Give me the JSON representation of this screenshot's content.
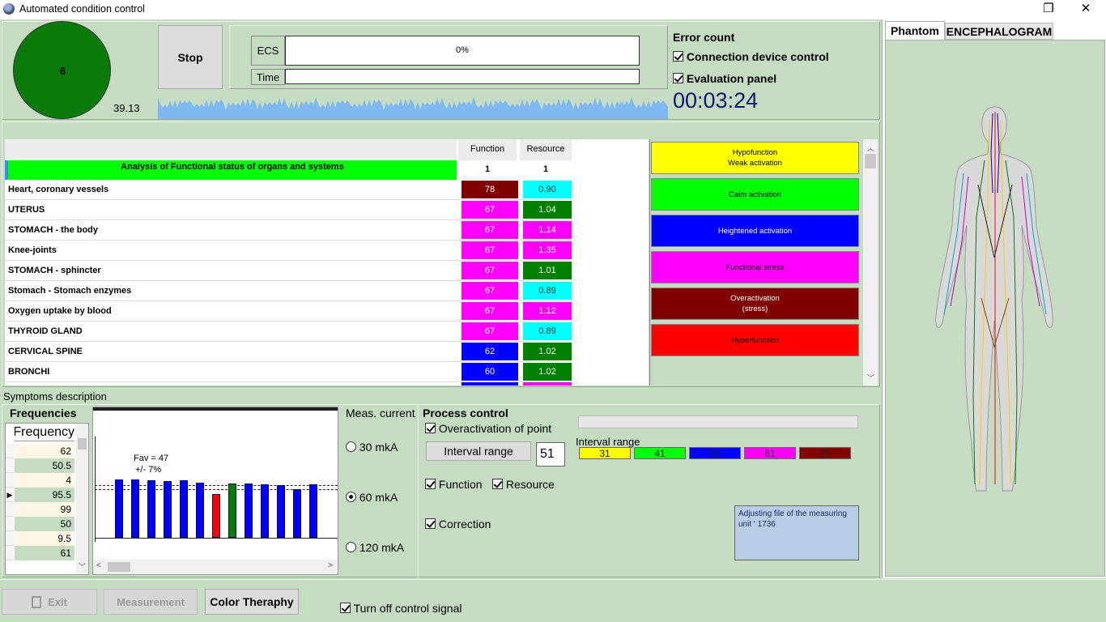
{
  "window": {
    "title": "Automated condition control",
    "restore_glyph": "❐",
    "close_glyph": "✕"
  },
  "top": {
    "circle_value": "6",
    "circle_color": "#0a7a0a",
    "score": "39.13",
    "stop_label": "Stop",
    "ecs_label": "ECS",
    "ecs_progress": 0,
    "ecs_value": "0%",
    "time_label": "Time",
    "time_value": "",
    "error_count_label": "Error count",
    "connection_label": "Connection device control",
    "evaluation_label": "Evaluation panel",
    "timer": "00:03:24"
  },
  "table": {
    "title": "Analysis  of Functional status of organs and systems",
    "col_function": "Function",
    "col_resource": "Resource",
    "sub_function": "1",
    "sub_resource": "1",
    "rows": [
      {
        "name": "Heart, coronary vessels",
        "function": "78",
        "fcolor": "#800000",
        "resource": "0.90",
        "rcolor": "#00ffff",
        "rtext": "#333"
      },
      {
        "name": "UTERUS",
        "function": "67",
        "fcolor": "#ff00ff",
        "resource": "1.04",
        "rcolor": "#008000",
        "rtext": "#fff"
      },
      {
        "name": "STOMACH - the body",
        "function": "67",
        "fcolor": "#ff00ff",
        "resource": "1.14",
        "rcolor": "#ff00ff",
        "rtext": "#fff"
      },
      {
        "name": "Knee-joints",
        "function": "67",
        "fcolor": "#ff00ff",
        "resource": "1.35",
        "rcolor": "#ff00ff",
        "rtext": "#fff"
      },
      {
        "name": "STOMACH - sphincter",
        "function": "67",
        "fcolor": "#ff00ff",
        "resource": "1.01",
        "rcolor": "#008000",
        "rtext": "#fff"
      },
      {
        "name": "Stomach - Stomach enzymes",
        "function": "67",
        "fcolor": "#ff00ff",
        "resource": "0.89",
        "rcolor": "#00ffff",
        "rtext": "#333"
      },
      {
        "name": "Oxygen uptake by blood",
        "function": "67",
        "fcolor": "#ff00ff",
        "resource": "1.12",
        "rcolor": "#ff00ff",
        "rtext": "#fff"
      },
      {
        "name": "THYROID GLAND",
        "function": "67",
        "fcolor": "#ff00ff",
        "resource": "0.89",
        "rcolor": "#00ffff",
        "rtext": "#333"
      },
      {
        "name": "CERVICAL SPINE",
        "function": "62",
        "fcolor": "#0000ff",
        "resource": "1.02",
        "rcolor": "#008000",
        "rtext": "#fff"
      },
      {
        "name": "BRONCHI",
        "function": "60",
        "fcolor": "#0000ff",
        "resource": "1.02",
        "rcolor": "#008000",
        "rtext": "#fff"
      }
    ]
  },
  "legend": [
    {
      "label": "Hypofunction\nWeak activation",
      "color": "#ffff00",
      "text": "#000"
    },
    {
      "label": "Calm activation",
      "color": "#00ff00",
      "text": "#000"
    },
    {
      "label": "Heightened activation",
      "color": "#0000ff",
      "text": "#fff"
    },
    {
      "label": "Functional stress",
      "color": "#ff00ff",
      "text": "#000"
    },
    {
      "label": "Overactivation\n(stress)",
      "color": "#800000",
      "text": "#fff"
    },
    {
      "label": "Hyperfunction",
      "color": "#ff0000",
      "text": "#000"
    }
  ],
  "symptoms_label": "Symptoms description",
  "frequencies": {
    "title": "Frequencies",
    "column_header": "Frequency",
    "values": [
      "62",
      "50.5",
      "4",
      "95.5",
      "99",
      "50",
      "9.5",
      "61"
    ],
    "selected_index": 3
  },
  "chart": {
    "fav": "Fav = 47",
    "tolerance": "+/-   7%",
    "bar_values": [
      72,
      72,
      71,
      70,
      71,
      68,
      54,
      67,
      67,
      66,
      65,
      60,
      66
    ],
    "bar_colors": [
      "#0000ff",
      "#0000ff",
      "#0000ff",
      "#0000ff",
      "#0000ff",
      "#0000ff",
      "#ff0000",
      "#008000",
      "#0000ff",
      "#0000ff",
      "#0000ff",
      "#0000ff",
      "#0000ff"
    ]
  },
  "current": {
    "label": "Meas. current",
    "options": [
      "30 mkA",
      "60 mkA",
      "120 mkA"
    ],
    "selected": 1
  },
  "process": {
    "title": "Process control",
    "overactivation_label": "Overactivation of point",
    "interval_button": "Interval range",
    "interval_value": "51",
    "interval_range_label": "Interval range",
    "intervals": [
      {
        "value": "31",
        "color": "#ffff00"
      },
      {
        "value": "41",
        "color": "#00ff00"
      },
      {
        "value": "51",
        "color": "#0000ff"
      },
      {
        "value": "61",
        "color": "#ff00ff"
      },
      {
        "value": "71",
        "color": "#800000"
      }
    ],
    "function_label": "Function",
    "resource_label": "Resource",
    "correction_label": "Correction",
    "note": "Adjusting file of the measuring unit ' 1736"
  },
  "tabs": {
    "phantom": "Phantom",
    "encephalogram": "ENCEPHALOGRAM"
  },
  "bottom": {
    "exit_label": "Exit",
    "measurement_label": "Measurement",
    "color_therapy_label": "Color Theraphy",
    "turn_off_label": "Turn off control signal"
  }
}
